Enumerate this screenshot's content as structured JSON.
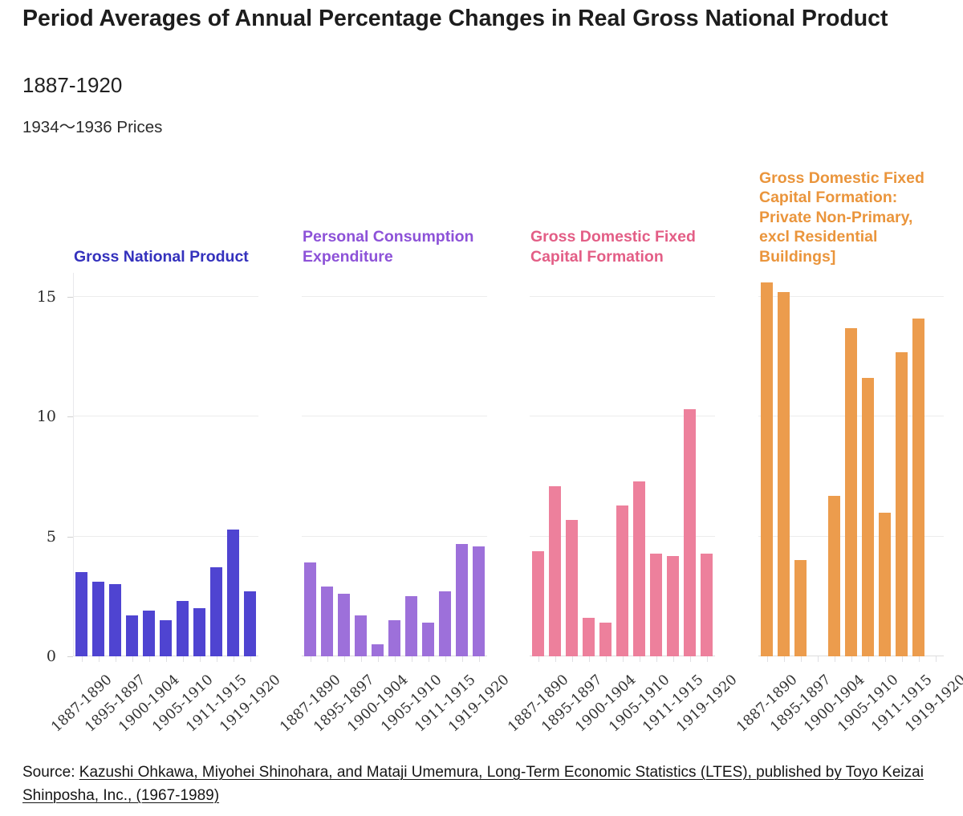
{
  "page": {
    "title": "Period Averages of Annual Percentage Changes in Real Gross National Product",
    "subtitle": "1887-1920",
    "note": "1934～1936 Prices",
    "source_prefix": "Source: ",
    "source_link": "Kazushi Ohkawa, Miyohei Shinohara, and Mataji Umemura, Long-Term Economic Statistics (LTES), published by Toyo Keizai Shinposha, Inc., (1967-1989)"
  },
  "chart_data": {
    "type": "bar",
    "layout": "four small-multiple column charts sharing one hidden-right y axis, horizontal gridlines, rotated x labels",
    "title": "Period Averages of Annual Percentage Changes in Real Gross National Product",
    "subtitle": "1887-1920",
    "note": "1934～1936 Prices",
    "ylim": [
      0,
      16
    ],
    "yticks": [
      0,
      5,
      10,
      15
    ],
    "grid": "horizontal",
    "x_slots": 11,
    "x_tick_labels": [
      "1887-1890",
      "1895-1897",
      "1900-1904",
      "1905-1910",
      "1911-1915",
      "1919-1920"
    ],
    "x_label_slots": [
      0,
      2,
      4,
      6,
      8,
      10
    ],
    "series": [
      {
        "name": "Gross National Product",
        "bar_color": "#4f44d1",
        "title_color": "#3431bd",
        "values": [
          3.5,
          3.1,
          3.0,
          1.7,
          1.9,
          1.5,
          2.3,
          2.0,
          3.7,
          5.3,
          2.7
        ]
      },
      {
        "name": "Personal Consumption Expenditure",
        "bar_color": "#9d70da",
        "title_color": "#8d52d8",
        "values": [
          3.9,
          2.9,
          2.6,
          1.7,
          0.5,
          1.5,
          2.5,
          1.4,
          2.7,
          4.7,
          4.6
        ]
      },
      {
        "name": "Gross Domestic Fixed Capital Formation",
        "bar_color": "#ed809c",
        "title_color": "#e35e86",
        "values": [
          4.4,
          7.1,
          5.7,
          1.6,
          1.4,
          6.3,
          7.3,
          4.3,
          4.2,
          10.3,
          4.3
        ]
      },
      {
        "name": "Gross Domestic Fixed Capital Formation: Private Non-Primary, excl Residential Buildings]",
        "bar_color": "#ec9c4d",
        "title_color": "#ea953c",
        "values": [
          15.6,
          15.2,
          4.0,
          null,
          6.7,
          13.7,
          11.6,
          6.0,
          12.7,
          14.1,
          null
        ]
      }
    ]
  }
}
